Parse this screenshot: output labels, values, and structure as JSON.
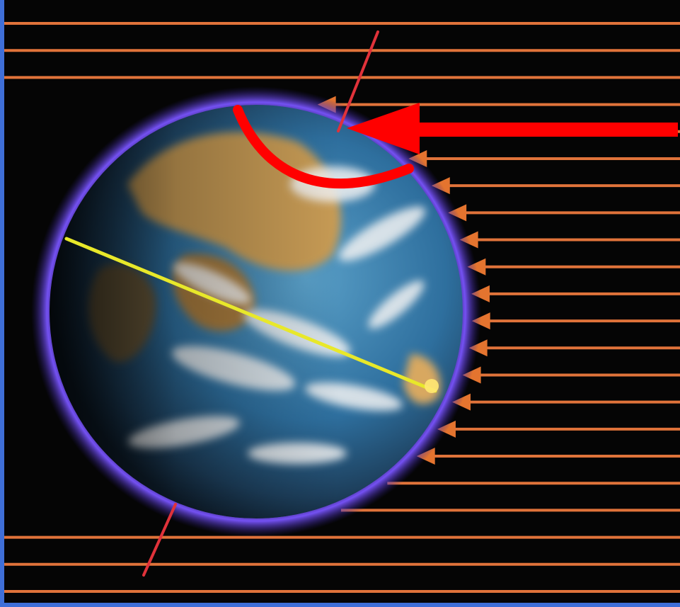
{
  "figure": {
    "description_elements": [
      "sun-rays",
      "earth-globe",
      "rotation-axis",
      "equator-line",
      "incoming-ray-arrow",
      "curved-arrow"
    ],
    "colors": {
      "page_border": "#3f6fd8",
      "space_background": "#050505",
      "sun_ray": "#e0733a",
      "ray_arrowhead": "#e4742f",
      "atmosphere_glow": "#6f4cff",
      "ocean": "#2e6f9e",
      "land": "#c79b55",
      "cloud": "#f2f2f2",
      "rotation_axis": "#e0323a",
      "equator_line": "#e8e82a",
      "highlight_arrow": "#ff0000"
    },
    "sun_ray_count": 22,
    "ray_arrowhead_count": 14
  }
}
